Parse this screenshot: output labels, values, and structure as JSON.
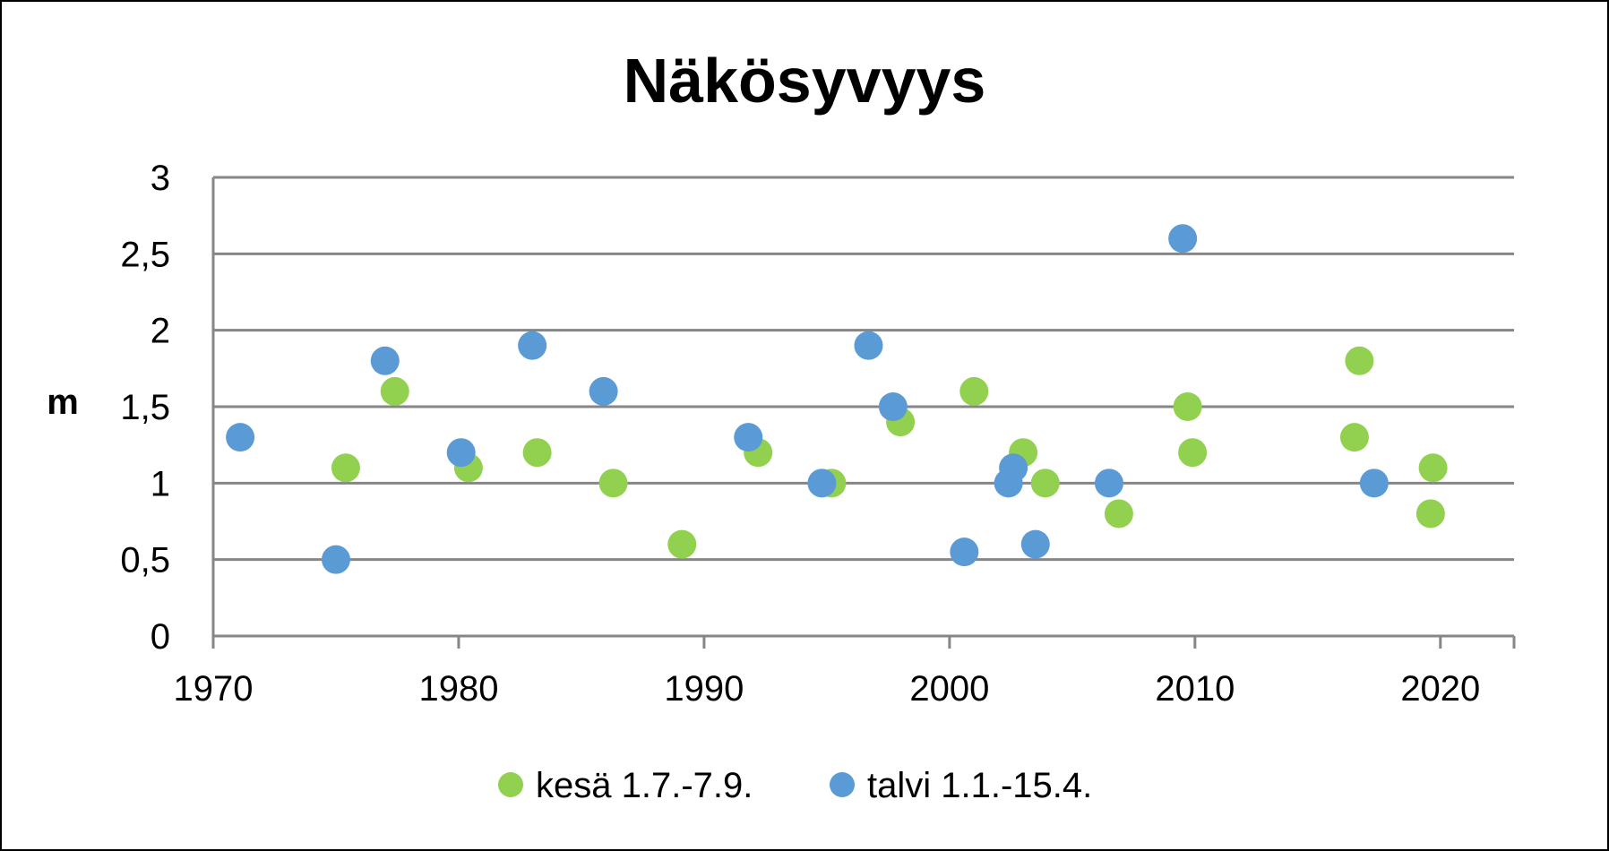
{
  "chart_data": {
    "type": "scatter",
    "title": "Näkösyvyys",
    "xlabel": "",
    "ylabel": "m",
    "xlim": [
      1970,
      2023
    ],
    "ylim": [
      0,
      3
    ],
    "x_ticks": [
      1970,
      1980,
      1990,
      2000,
      2010,
      2020
    ],
    "x_tick_labels": [
      "1970",
      "1980",
      "1990",
      "2000",
      "2010",
      "2020"
    ],
    "y_ticks": [
      0,
      0.5,
      1,
      1.5,
      2,
      2.5,
      3
    ],
    "y_tick_labels": [
      "0",
      "0,5",
      "1",
      "1,5",
      "2",
      "2,5",
      "3"
    ],
    "grid": true,
    "legend_position": "bottom",
    "series": [
      {
        "name": "kesä 1.7.-7.9.",
        "color": "#92d050",
        "points": [
          [
            1975.4,
            1.1
          ],
          [
            1977.4,
            1.6
          ],
          [
            1980.4,
            1.1
          ],
          [
            1983.2,
            1.2
          ],
          [
            1986.3,
            1.0
          ],
          [
            1989.1,
            0.6
          ],
          [
            1992.2,
            1.2
          ],
          [
            1995.2,
            1.0
          ],
          [
            1998.0,
            1.4
          ],
          [
            2001.0,
            1.6
          ],
          [
            2003.0,
            1.2
          ],
          [
            2003.9,
            1.0
          ],
          [
            2006.9,
            0.8
          ],
          [
            2009.7,
            1.5
          ],
          [
            2009.9,
            1.2
          ],
          [
            2016.5,
            1.3
          ],
          [
            2016.7,
            1.8
          ],
          [
            2019.6,
            0.8
          ],
          [
            2019.7,
            1.1
          ]
        ]
      },
      {
        "name": "talvi 1.1.-15.4.",
        "color": "#5b9bd5",
        "points": [
          [
            1971.1,
            1.3
          ],
          [
            1975.0,
            0.5
          ],
          [
            1977.0,
            1.8
          ],
          [
            1980.1,
            1.2
          ],
          [
            1983.0,
            1.9
          ],
          [
            1985.9,
            1.6
          ],
          [
            1991.8,
            1.3
          ],
          [
            1994.8,
            1.0
          ],
          [
            1996.7,
            1.9
          ],
          [
            1997.7,
            1.5
          ],
          [
            2000.6,
            0.55
          ],
          [
            2002.4,
            1.0
          ],
          [
            2002.6,
            1.1
          ],
          [
            2003.5,
            0.6
          ],
          [
            2006.5,
            1.0
          ],
          [
            2009.5,
            2.6
          ],
          [
            2017.3,
            1.0
          ]
        ]
      }
    ]
  }
}
